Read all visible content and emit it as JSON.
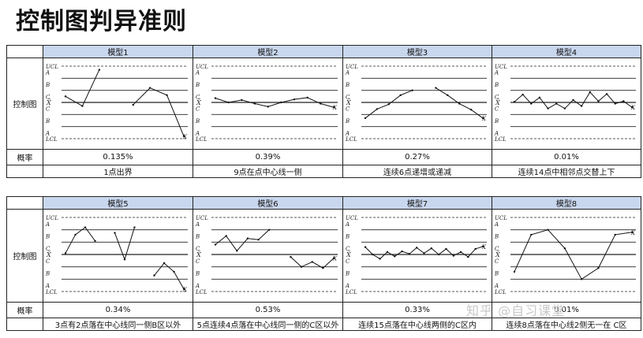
{
  "title": "控制图判异准则",
  "row_labels": {
    "chart": "控制图",
    "prob": "概率"
  },
  "zone_labels": {
    "ucl": "UCL",
    "lcl": "LCL",
    "a": "A",
    "b": "B",
    "c": "C",
    "xbar": "X̄",
    "x": "X"
  },
  "top": {
    "models": [
      {
        "name": "模型1",
        "prob": "0.135%",
        "desc": "1点出界"
      },
      {
        "name": "模型2",
        "prob": "0.39%",
        "desc": "9点在点中心线一侧"
      },
      {
        "name": "模型3",
        "prob": "0.27%",
        "desc": "连续6点递增或递减"
      },
      {
        "name": "模型4",
        "prob": "0.01%",
        "desc": "连续14点中相邻点交替上下"
      }
    ]
  },
  "bottom": {
    "models": [
      {
        "name": "模型5",
        "prob": "0.34%",
        "desc": "3点有2点落在中心线同一侧B区以外"
      },
      {
        "name": "模型6",
        "prob": "0.53%",
        "desc": "5点连续4点落在中心线同一侧的C区以外"
      },
      {
        "name": "模型7",
        "prob": "0.33%",
        "desc": "连续15点落在中心线两侧的C区内"
      },
      {
        "name": "模型8",
        "prob": "0.01%",
        "desc": "连续8点落在中心线2侧无一在 C区"
      }
    ]
  },
  "chart_data": [
    {
      "type": "line",
      "title": "模型1",
      "zones": [
        "UCL",
        "A",
        "B",
        "C",
        "C",
        "B",
        "A",
        "LCL"
      ],
      "series": [
        {
          "values": [
            0.5,
            -0.3,
            2.7
          ]
        },
        {
          "values": [
            -0.2,
            1.2,
            0.6,
            -2.8
          ]
        }
      ],
      "out_of_control_marker": "X"
    },
    {
      "type": "line",
      "title": "模型2",
      "zones": [
        "UCL",
        "A",
        "B",
        "C",
        "C",
        "B",
        "A",
        "LCL"
      ],
      "series": [
        {
          "values": [
            0.35,
            0.0,
            0.2,
            -0.1,
            -0.35,
            0.0,
            0.25,
            0.4,
            -0.1,
            -0.4
          ]
        }
      ],
      "out_of_control_marker": "X"
    },
    {
      "type": "line",
      "title": "模型3",
      "zones": [
        "UCL",
        "A",
        "B",
        "C",
        "C",
        "B",
        "A",
        "LCL"
      ],
      "series": [
        {
          "values": [
            -1.3,
            -0.55,
            -0.15,
            0.6,
            1.0
          ]
        },
        {
          "values": [
            1.2,
            0.6,
            -0.1,
            -0.6,
            -1.3
          ]
        }
      ],
      "out_of_control_marker": "X"
    },
    {
      "type": "line",
      "title": "模型4",
      "zones": [
        "UCL",
        "A",
        "B",
        "C",
        "C",
        "B",
        "A",
        "LCL"
      ],
      "series": [
        {
          "values": [
            0.05,
            0.65,
            -0.1,
            0.4,
            -0.5,
            -0.1,
            -0.5,
            0.2,
            -0.3,
            0.85,
            0.1,
            0.7,
            -0.1,
            0.1,
            -0.4
          ]
        }
      ],
      "out_of_control_marker": "X"
    },
    {
      "type": "line",
      "title": "模型5",
      "zones": [
        "UCL",
        "A",
        "B",
        "C",
        "C",
        "B",
        "A",
        "LCL"
      ],
      "series": [
        {
          "values": [
            0.1,
            1.6,
            2.2,
            1.1
          ]
        },
        {
          "values": [
            1.75,
            -0.4,
            2.2
          ]
        },
        {
          "values": [
            -1.7,
            -0.7,
            -1.4,
            -2.8
          ]
        }
      ],
      "out_of_control_marker": "X"
    },
    {
      "type": "line",
      "title": "模型6",
      "zones": [
        "UCL",
        "A",
        "B",
        "C",
        "C",
        "B",
        "A",
        "LCL"
      ],
      "series": [
        {
          "values": [
            0.8,
            1.5,
            0.3,
            1.3,
            1.2,
            2.0
          ]
        },
        {
          "values": [
            -0.2,
            -1.0,
            -0.6,
            -1.1,
            -0.3
          ]
        }
      ],
      "out_of_control_marker": "X"
    },
    {
      "type": "line",
      "title": "模型7",
      "zones": [
        "UCL",
        "A",
        "B",
        "C",
        "C",
        "B",
        "A",
        "LCL"
      ],
      "series": [
        {
          "values": [
            0.6,
            0.0,
            -0.35,
            0.2,
            -0.15,
            0.25,
            0.05,
            0.55,
            0.1,
            0.5,
            0.0,
            0.45,
            -0.1,
            0.2,
            -0.2,
            0.45,
            0.65
          ]
        }
      ],
      "out_of_control_marker": "X"
    },
    {
      "type": "line",
      "title": "模型8",
      "zones": [
        "UCL",
        "A",
        "B",
        "C",
        "C",
        "B",
        "A",
        "LCL"
      ],
      "series": [
        {
          "values": [
            -1.4,
            1.6,
            2.0,
            0.5,
            -2.0,
            -1.1,
            1.6,
            1.8
          ]
        }
      ],
      "out_of_control_marker": "X"
    }
  ],
  "watermark": "知乎 @自习课堂"
}
